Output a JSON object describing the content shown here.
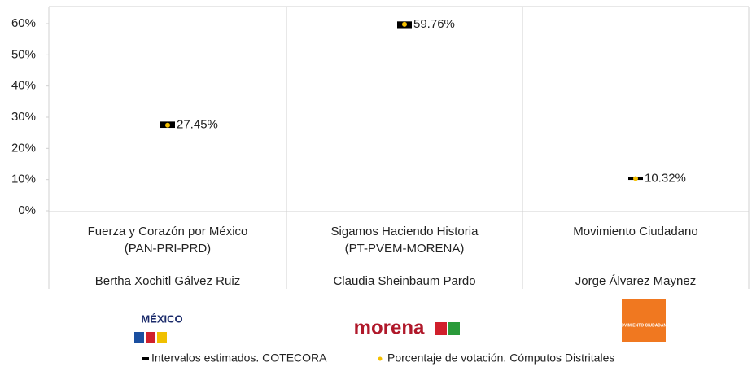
{
  "chart_data": {
    "type": "interval",
    "category_lines": [
      [
        "Fuerza y Corazón por México",
        "(PAN-PRI-PRD)"
      ],
      [
        "Sigamos Haciendo Historia",
        "(PT-PVEM-MORENA)"
      ],
      [
        "Movimiento Ciudadano"
      ]
    ],
    "candidates": [
      "Bertha Xochitl Gálvez Ruiz",
      "Claudia Sheinbaum Pardo",
      "Jorge Álvarez Maynez"
    ],
    "logos": [
      "MÉXICO",
      "morena",
      "MOVIMIENTO CIUDADANO"
    ],
    "series": [
      {
        "name": "Intervalos estimados. COTECORA",
        "color": "#000000",
        "low": [
          26.6,
          58.3,
          9.9
        ],
        "high": [
          28.6,
          60.7,
          10.8
        ]
      },
      {
        "name": "Porcentaje de votación. Cómputos Distritales",
        "color": "#f5c000",
        "values": [
          27.45,
          59.76,
          10.32
        ],
        "value_labels": [
          "27.45%",
          "59.76%",
          "10.32%"
        ]
      }
    ],
    "ylim": [
      0,
      60
    ],
    "yticks": [
      {
        "value": 0,
        "label": "0%"
      },
      {
        "value": 10,
        "label": "10%"
      },
      {
        "value": 20,
        "label": "20%"
      },
      {
        "value": 30,
        "label": "30%"
      },
      {
        "value": 40,
        "label": "40%"
      },
      {
        "value": 50,
        "label": "50%"
      },
      {
        "value": 60,
        "label": "60%"
      }
    ]
  }
}
